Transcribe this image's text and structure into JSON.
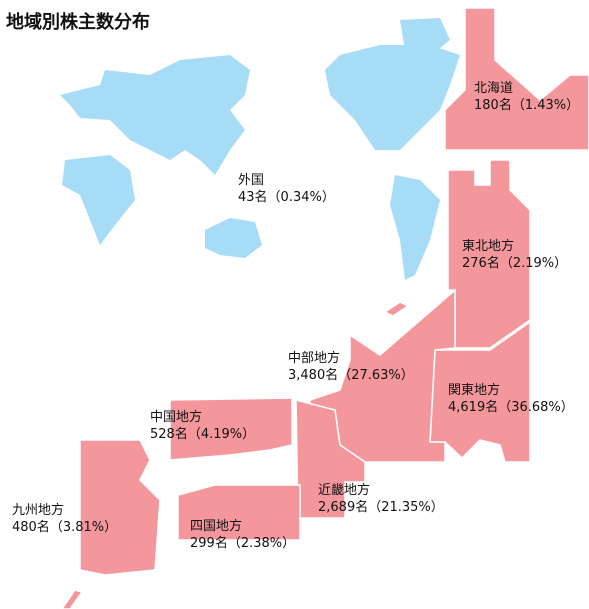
{
  "title": "地域別株主数分布",
  "regions": [
    {
      "name": "北海道",
      "count": "180名",
      "share": "（1.43%）"
    },
    {
      "name": "外国",
      "count": "43名",
      "share": "（0.34%）"
    },
    {
      "name": "東北地方",
      "count": "276名",
      "share": "（2.19%）"
    },
    {
      "name": "中部地方",
      "count": "3,480名",
      "share": "（27.63%）"
    },
    {
      "name": "関東地方",
      "count": "4,619名",
      "share": "（36.68%）"
    },
    {
      "name": "中国地方",
      "count": "528名",
      "share": "（4.19%）"
    },
    {
      "name": "近畿地方",
      "count": "2,689名",
      "share": "（21.35%）"
    },
    {
      "name": "九州地方",
      "count": "480名",
      "share": "（3.81%）"
    },
    {
      "name": "四国地方",
      "count": "299名",
      "share": "（2.38%）"
    }
  ]
}
